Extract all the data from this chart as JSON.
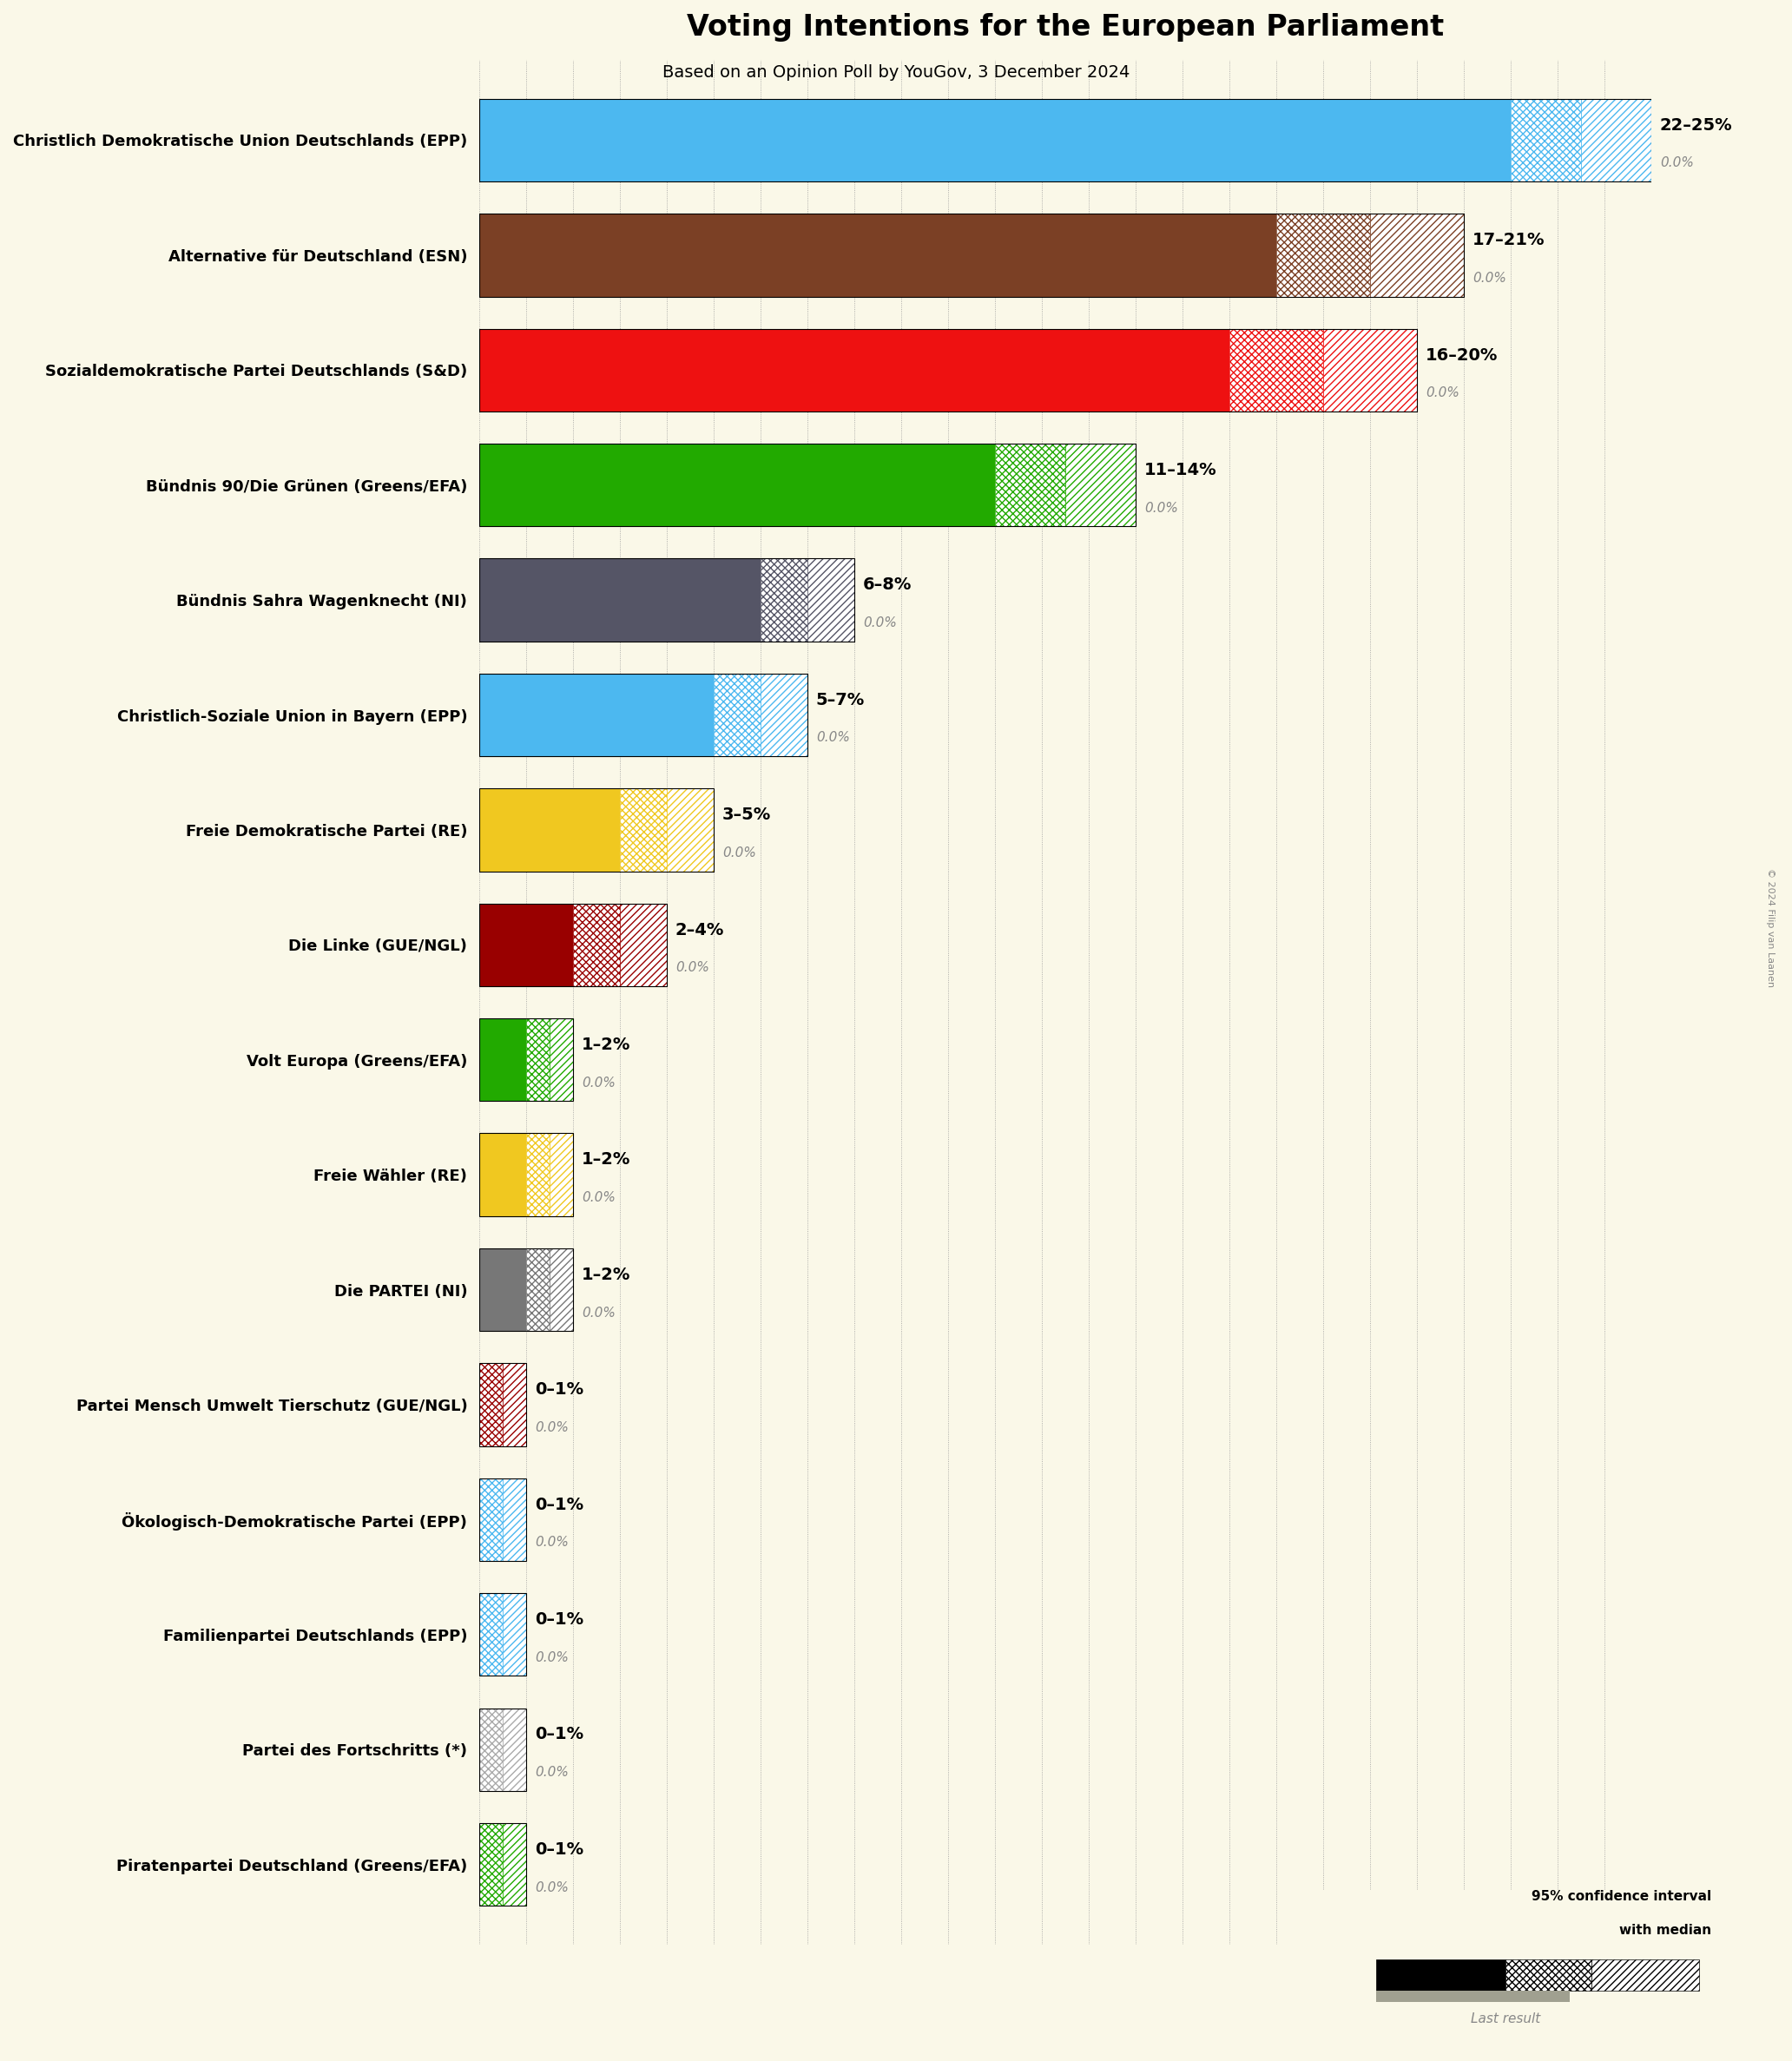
{
  "title": "Voting Intentions for the European Parliament",
  "subtitle": "Based on an Opinion Poll by YouGov, 3 December 2024",
  "background_color": "#faf8e8",
  "parties": [
    {
      "name": "Christlich Demokratische Union Deutschlands (EPP)",
      "low": 22,
      "high": 25,
      "median": 23.5,
      "last": 0.0,
      "color": "#4cb8f0",
      "label": "22–25%"
    },
    {
      "name": "Alternative für Deutschland (ESN)",
      "low": 17,
      "high": 21,
      "median": 19.0,
      "last": 0.0,
      "color": "#7b4025",
      "label": "17–21%"
    },
    {
      "name": "Sozialdemokratische Partei Deutschlands (S&D)",
      "low": 16,
      "high": 20,
      "median": 18.0,
      "last": 0.0,
      "color": "#ee1111",
      "label": "16–20%"
    },
    {
      "name": "Bündnis 90/Die Grünen (Greens/EFA)",
      "low": 11,
      "high": 14,
      "median": 12.5,
      "last": 0.0,
      "color": "#22aa00",
      "label": "11–14%"
    },
    {
      "name": "Bündnis Sahra Wagenknecht (NI)",
      "low": 6,
      "high": 8,
      "median": 7.0,
      "last": 0.0,
      "color": "#555566",
      "label": "6–8%"
    },
    {
      "name": "Christlich-Soziale Union in Bayern (EPP)",
      "low": 5,
      "high": 7,
      "median": 6.0,
      "last": 0.0,
      "color": "#4cb8f0",
      "label": "5–7%"
    },
    {
      "name": "Freie Demokratische Partei (RE)",
      "low": 3,
      "high": 5,
      "median": 4.0,
      "last": 0.0,
      "color": "#f0c820",
      "label": "3–5%"
    },
    {
      "name": "Die Linke (GUE/NGL)",
      "low": 2,
      "high": 4,
      "median": 3.0,
      "last": 0.0,
      "color": "#990000",
      "label": "2–4%"
    },
    {
      "name": "Volt Europa (Greens/EFA)",
      "low": 1,
      "high": 2,
      "median": 1.5,
      "last": 0.0,
      "color": "#22aa00",
      "label": "1–2%"
    },
    {
      "name": "Freie Wähler (RE)",
      "low": 1,
      "high": 2,
      "median": 1.5,
      "last": 0.0,
      "color": "#f0c820",
      "label": "1–2%"
    },
    {
      "name": "Die PARTEI (NI)",
      "low": 1,
      "high": 2,
      "median": 1.5,
      "last": 0.0,
      "color": "#777777",
      "label": "1–2%"
    },
    {
      "name": "Partei Mensch Umwelt Tierschutz (GUE/NGL)",
      "low": 0,
      "high": 1,
      "median": 0.5,
      "last": 0.0,
      "color": "#990000",
      "label": "0–1%"
    },
    {
      "name": "Ökologisch-Demokratische Partei (EPP)",
      "low": 0,
      "high": 1,
      "median": 0.5,
      "last": 0.0,
      "color": "#4cb8f0",
      "label": "0–1%"
    },
    {
      "name": "Familienpartei Deutschlands (EPP)",
      "low": 0,
      "high": 1,
      "median": 0.5,
      "last": 0.0,
      "color": "#4cb8f0",
      "label": "0–1%"
    },
    {
      "name": "Partei des Fortschritts (*)",
      "low": 0,
      "high": 1,
      "median": 0.5,
      "last": 0.0,
      "color": "#aaaaaa",
      "label": "0–1%"
    },
    {
      "name": "Piratenpartei Deutschland (Greens/EFA)",
      "low": 0,
      "high": 1,
      "median": 0.5,
      "last": 0.0,
      "color": "#22aa00",
      "label": "0–1%"
    }
  ],
  "xlim_max": 25,
  "copyright_text": "© 2024 Filip van Laanen"
}
